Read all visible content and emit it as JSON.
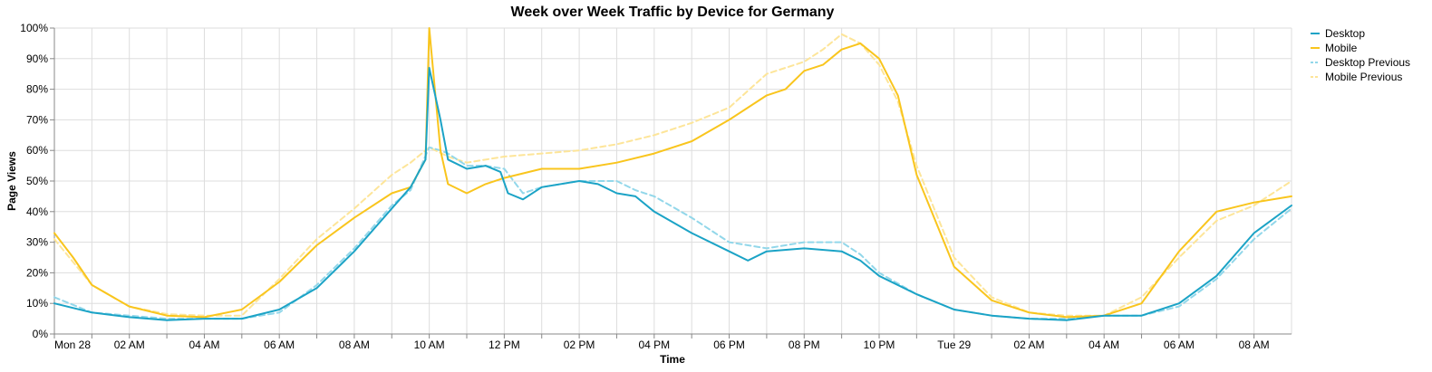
{
  "chart_data": {
    "type": "line",
    "title": "Week over Week Traffic by Device for Germany",
    "xlabel": "Time",
    "ylabel": "Page Views",
    "x_ticks": [
      "Mon 28",
      "02 AM",
      "04 AM",
      "06 AM",
      "08 AM",
      "10 AM",
      "12 PM",
      "02 PM",
      "04 PM",
      "06 PM",
      "08 PM",
      "10 PM",
      "Tue 29",
      "02 AM",
      "04 AM",
      "06 AM",
      "08 AM"
    ],
    "y_ticks": [
      "0%",
      "10%",
      "20%",
      "30%",
      "40%",
      "50%",
      "60%",
      "70%",
      "80%",
      "90%",
      "100%"
    ],
    "ylim": [
      0,
      100
    ],
    "x_unit": "hours since Mon 28 00:00",
    "xlim": [
      0,
      33
    ],
    "grid": true,
    "legend_position": "top-right",
    "series": [
      {
        "name": "Desktop",
        "color": "#1ba3c6",
        "dashed": false,
        "x": [
          0,
          1,
          2,
          3,
          4,
          5,
          6,
          7,
          8,
          9,
          9.5,
          9.9,
          10,
          10.3,
          10.5,
          11,
          11.5,
          11.9,
          12.1,
          12.5,
          13,
          14,
          14.5,
          15,
          15.5,
          16,
          17,
          18,
          18.5,
          19,
          20,
          21,
          21.5,
          22,
          23,
          24,
          25,
          26,
          27,
          28,
          29,
          30,
          31,
          32,
          33
        ],
        "y": [
          10,
          7,
          5.5,
          4.5,
          5,
          5,
          8,
          15,
          27,
          41,
          48,
          57,
          87,
          70,
          57,
          54,
          55,
          53,
          46,
          44,
          48,
          50,
          49,
          46,
          45,
          40,
          33,
          27,
          24,
          27,
          28,
          27,
          24,
          19,
          13,
          8,
          6,
          5,
          4.5,
          6,
          6,
          10,
          19,
          33,
          42
        ]
      },
      {
        "name": "Mobile",
        "color": "#f9c51d",
        "dashed": false,
        "x": [
          0,
          0.5,
          1,
          2,
          3,
          4,
          5,
          6,
          7,
          8,
          9,
          9.5,
          9.9,
          10,
          10.3,
          10.5,
          11,
          11.5,
          12,
          13,
          14,
          15,
          16,
          17,
          18,
          19,
          19.5,
          20,
          20.5,
          21,
          21.5,
          22,
          22.5,
          23,
          24,
          25,
          26,
          27,
          28,
          29,
          30,
          31,
          32,
          33
        ],
        "y": [
          33,
          25,
          16,
          9,
          6,
          5.5,
          8,
          17,
          29,
          38,
          46,
          48,
          57,
          100,
          60,
          49,
          46,
          49,
          51,
          54,
          54,
          56,
          59,
          63,
          70,
          78,
          80,
          86,
          88,
          93,
          95,
          90,
          78,
          52,
          22,
          11,
          7,
          5.5,
          6,
          10,
          27,
          40,
          43,
          45
        ]
      },
      {
        "name": "Desktop Previous",
        "color": "#92d7ea",
        "dashed": true,
        "x": [
          0,
          1,
          2,
          3,
          4,
          5,
          6,
          7,
          8,
          9,
          9.5,
          10,
          10.3,
          10.5,
          11,
          11.5,
          12,
          12.5,
          13,
          14,
          15,
          15.5,
          16,
          17,
          18,
          19,
          20,
          21,
          21.5,
          22,
          23,
          24,
          25,
          26,
          27,
          28,
          29,
          30,
          31,
          32,
          33
        ],
        "y": [
          12,
          7,
          6,
          5,
          5,
          5,
          7,
          16,
          28,
          42,
          47,
          61,
          60,
          59,
          55,
          55,
          54,
          46,
          48,
          50,
          50,
          47,
          45,
          38,
          30,
          28,
          30,
          30,
          26,
          20,
          13,
          8,
          6,
          5,
          5,
          6,
          6,
          9,
          18,
          31,
          41
        ]
      },
      {
        "name": "Mobile Previous",
        "color": "#fde599",
        "dashed": true,
        "x": [
          0,
          1,
          2,
          3,
          4,
          5,
          6,
          7,
          8,
          9,
          9.5,
          10,
          10.5,
          11,
          12,
          13,
          14,
          15,
          16,
          17,
          18,
          19,
          20,
          20.5,
          21,
          21.5,
          22,
          22.5,
          23,
          24,
          25,
          26,
          27,
          28,
          29,
          30,
          31,
          32,
          33
        ],
        "y": [
          31,
          16,
          9,
          6.5,
          6,
          6,
          18,
          31,
          41,
          52,
          56,
          61,
          58,
          56,
          58,
          59,
          60,
          62,
          65,
          69,
          74,
          85,
          89,
          93,
          98,
          95,
          88,
          76,
          55,
          25,
          12,
          7,
          6,
          6,
          12,
          25,
          37,
          42,
          50
        ]
      }
    ]
  }
}
